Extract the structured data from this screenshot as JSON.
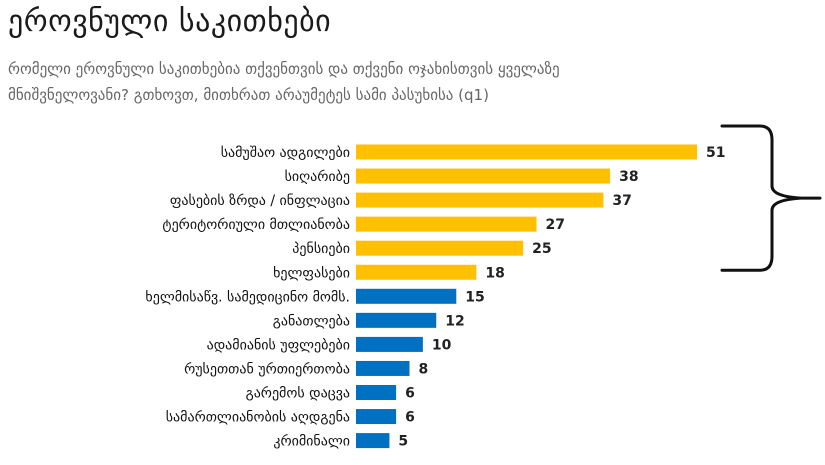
{
  "page": {
    "title": "ეროვნული საკითხები",
    "subtitle": "რომელი ეროვნული საკითხებია თქვენთვის და თქვენი ოჯახისთვის ყველაზე\nმნიშვნელოვანი? გთხოვთ, მითხრათ არაუმეტეს სამი პასუხისა (q1)"
  },
  "chart_data": {
    "type": "bar",
    "orientation": "horizontal",
    "categories": [
      "სამუშაო ადგილები",
      "სიღარიბე",
      "ფასების ზრდა / ინფლაცია",
      "ტერიტორიული მთლიანობა",
      "პენსიები",
      "ხელფასები",
      "ხელმისაწვ. სამედიცინო მომს.",
      "განათლება",
      "ადამიანის უფლებები",
      "რუსეთთან ურთიერთობა",
      "გარემოს დაცვა",
      "სამართლიანობის აღდგენა",
      "კრიმინალი"
    ],
    "values": [
      51,
      38,
      37,
      27,
      25,
      18,
      15,
      12,
      10,
      8,
      6,
      6,
      5
    ],
    "bar_colors": [
      "#FFC000",
      "#FFC000",
      "#FFC000",
      "#FFC000",
      "#FFC000",
      "#FFC000",
      "#0070C0",
      "#0070C0",
      "#0070C0",
      "#0070C0",
      "#0070C0",
      "#0070C0",
      "#0070C0"
    ],
    "xlim": [
      0,
      55
    ],
    "grid": false,
    "data_labels": true,
    "bracket_range": [
      0,
      4
    ]
  }
}
